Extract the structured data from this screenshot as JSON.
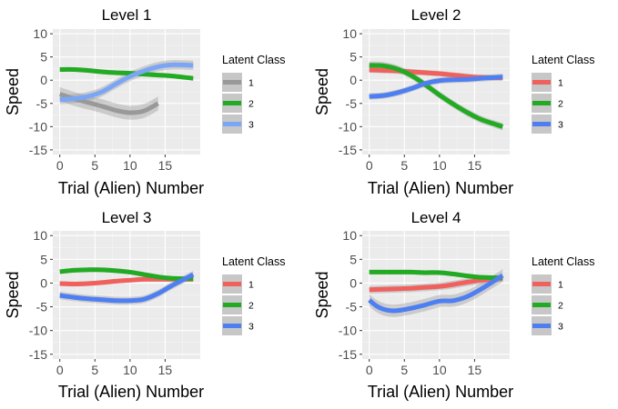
{
  "chart_data": [
    {
      "type": "line",
      "title": "Level 1",
      "xlabel": "Trial (Alien) Number",
      "ylabel": "Speed",
      "xlim": [
        -1,
        20
      ],
      "ylim": [
        -16,
        11
      ],
      "xticks": [
        0,
        5,
        10,
        15
      ],
      "yticks": [
        10,
        5,
        0,
        -5,
        -10,
        -15
      ],
      "legend_title": "Latent Class",
      "legend_position": "right",
      "grid": true,
      "series": [
        {
          "name": "1",
          "color": "#999999",
          "x": [
            0,
            2,
            4,
            6,
            8,
            10,
            12,
            14
          ],
          "y": [
            -3.0,
            -4.0,
            -4.8,
            -5.6,
            -6.5,
            -7.0,
            -6.6,
            -5.0
          ],
          "band": 1.5
        },
        {
          "name": "2",
          "color": "#22AA22",
          "x": [
            0,
            2,
            4,
            6,
            8,
            10,
            12,
            14,
            16,
            19
          ],
          "y": [
            2.3,
            2.3,
            2.1,
            1.8,
            1.6,
            1.5,
            1.3,
            1.1,
            0.9,
            0.4
          ],
          "band": 0.5
        },
        {
          "name": "3",
          "color": "#7AA6F5",
          "x": [
            0,
            2,
            4,
            6,
            8,
            10,
            12,
            14,
            16,
            19
          ],
          "y": [
            -4.2,
            -4.0,
            -3.5,
            -2.5,
            -0.8,
            0.8,
            2.0,
            2.9,
            3.3,
            3.2
          ],
          "band": 1.0
        }
      ]
    },
    {
      "type": "line",
      "title": "Level 2",
      "xlabel": "Trial (Alien) Number",
      "ylabel": "Speed",
      "xlim": [
        -1,
        20
      ],
      "ylim": [
        -16,
        11
      ],
      "xticks": [
        0,
        5,
        10,
        15
      ],
      "yticks": [
        10,
        5,
        0,
        -5,
        -10,
        -15
      ],
      "legend_title": "Latent Class",
      "legend_position": "right",
      "grid": true,
      "series": [
        {
          "name": "1",
          "color": "#F0605C",
          "x": [
            0,
            2,
            4,
            6,
            8,
            10,
            12,
            14,
            16,
            19
          ],
          "y": [
            2.2,
            2.1,
            2.0,
            1.8,
            1.6,
            1.4,
            1.1,
            0.8,
            0.6,
            0.5
          ],
          "band": 0.6
        },
        {
          "name": "2",
          "color": "#22AA22",
          "x": [
            0,
            2,
            4,
            6,
            8,
            10,
            12,
            14,
            16,
            19
          ],
          "y": [
            3.2,
            3.1,
            2.4,
            1.0,
            -1.0,
            -3.2,
            -5.2,
            -7.0,
            -8.5,
            -10.0
          ],
          "band": 0.8
        },
        {
          "name": "3",
          "color": "#4E7FF2",
          "x": [
            0,
            2,
            4,
            6,
            8,
            10,
            12,
            14,
            16,
            19
          ],
          "y": [
            -3.5,
            -3.3,
            -2.7,
            -1.8,
            -0.7,
            -0.1,
            0.1,
            0.2,
            0.4,
            0.7
          ],
          "band": 0.7
        }
      ]
    },
    {
      "type": "line",
      "title": "Level 3",
      "xlabel": "Trial (Alien) Number",
      "ylabel": "Speed",
      "xlim": [
        -1,
        20
      ],
      "ylim": [
        -16,
        11
      ],
      "xticks": [
        0,
        5,
        10,
        15
      ],
      "yticks": [
        10,
        5,
        0,
        -5,
        -10,
        -15
      ],
      "legend_title": "Latent Class",
      "legend_position": "right",
      "grid": true,
      "series": [
        {
          "name": "1",
          "color": "#F0605C",
          "x": [
            0,
            2,
            4,
            6,
            8,
            10,
            12,
            14,
            16,
            19
          ],
          "y": [
            -0.1,
            -0.2,
            -0.1,
            0.1,
            0.4,
            0.6,
            0.8,
            0.8,
            0.8,
            0.8
          ],
          "band": 0.5
        },
        {
          "name": "2",
          "color": "#22AA22",
          "x": [
            0,
            2,
            4,
            6,
            8,
            10,
            12,
            14,
            16,
            19
          ],
          "y": [
            2.4,
            2.7,
            2.8,
            2.8,
            2.6,
            2.3,
            1.8,
            1.3,
            1.0,
            0.9
          ],
          "band": 0.5
        },
        {
          "name": "3",
          "color": "#4E7FF2",
          "x": [
            0,
            2,
            4,
            6,
            8,
            10,
            12,
            14,
            16,
            19
          ],
          "y": [
            -2.6,
            -3.0,
            -3.3,
            -3.5,
            -3.7,
            -3.7,
            -3.4,
            -2.2,
            -0.5,
            1.8
          ],
          "band": 0.8
        }
      ]
    },
    {
      "type": "line",
      "title": "Level 4",
      "xlabel": "Trial (Alien) Number",
      "ylabel": "Speed",
      "xlim": [
        -1,
        20
      ],
      "ylim": [
        -16,
        11
      ],
      "xticks": [
        0,
        5,
        10,
        15
      ],
      "yticks": [
        10,
        5,
        0,
        -5,
        -10,
        -15
      ],
      "legend_title": "Latent Class",
      "legend_position": "right",
      "grid": true,
      "series": [
        {
          "name": "1",
          "color": "#F0605C",
          "x": [
            0,
            2,
            4,
            6,
            8,
            10,
            12,
            14,
            16,
            19
          ],
          "y": [
            -1.4,
            -1.3,
            -1.2,
            -1.1,
            -0.9,
            -0.7,
            -0.3,
            0.2,
            0.6,
            1.0
          ],
          "band": 0.8
        },
        {
          "name": "2",
          "color": "#22AA22",
          "x": [
            0,
            2,
            4,
            6,
            8,
            10,
            12,
            14,
            16,
            19
          ],
          "y": [
            2.3,
            2.3,
            2.3,
            2.3,
            2.2,
            2.2,
            1.9,
            1.5,
            1.2,
            1.1
          ],
          "band": 0.5
        },
        {
          "name": "3",
          "color": "#4E7FF2",
          "x": [
            0,
            1,
            2,
            3,
            4,
            6,
            8,
            10,
            12,
            14,
            16,
            19
          ],
          "y": [
            -3.6,
            -4.8,
            -5.5,
            -5.8,
            -5.8,
            -5.3,
            -4.6,
            -3.8,
            -3.7,
            -2.8,
            -1.2,
            1.6
          ],
          "band": 1.3
        }
      ]
    }
  ]
}
